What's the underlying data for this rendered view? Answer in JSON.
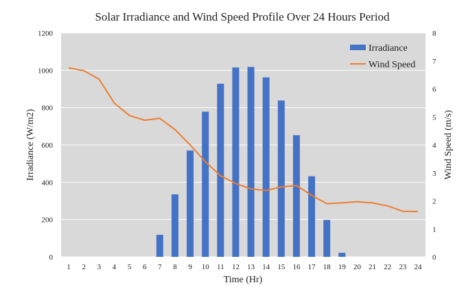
{
  "chart_data": {
    "type": "bar+line",
    "title": "Solar Irradiance and Wind Speed Profile Over 24 Hours Period",
    "xlabel": "Time (Hr)",
    "ylabel_left": "Irradiance (W/m2)",
    "ylabel_right": "Wind Speed (m/s)",
    "ylim_left": [
      0,
      1200
    ],
    "ylim_right": [
      0,
      8
    ],
    "yticks_left": [
      "0",
      "200",
      "400",
      "600",
      "800",
      "1000",
      "1200"
    ],
    "yticks_right": [
      "0",
      "1",
      "2",
      "3",
      "4",
      "5",
      "6",
      "7",
      "8"
    ],
    "categories": [
      "1",
      "2",
      "3",
      "4",
      "5",
      "6",
      "7",
      "8",
      "9",
      "10",
      "11",
      "12",
      "13",
      "14",
      "15",
      "16",
      "17",
      "18",
      "19",
      "20",
      "21",
      "22",
      "23",
      "24"
    ],
    "series": [
      {
        "name": "Irradiance",
        "type": "bar",
        "axis": "left",
        "color": "#4472C4",
        "values": [
          0,
          0,
          0,
          0,
          0,
          0,
          118,
          335,
          570,
          778,
          928,
          1015,
          1018,
          962,
          838,
          652,
          432,
          198,
          22,
          0,
          0,
          0,
          0,
          0
        ]
      },
      {
        "name": "Wind Speed",
        "type": "line",
        "axis": "right",
        "color": "#ED7D31",
        "values": [
          6.75,
          6.65,
          6.35,
          5.5,
          5.05,
          4.88,
          4.95,
          4.55,
          4.0,
          3.4,
          2.9,
          2.62,
          2.43,
          2.37,
          2.5,
          2.55,
          2.2,
          1.9,
          1.93,
          1.97,
          1.93,
          1.82,
          1.63,
          1.62
        ]
      }
    ],
    "legend": {
      "position": "top-right",
      "entries": [
        "Irradiance",
        "Wind Speed"
      ]
    },
    "grid": true,
    "plot_background": "#D9D9D9",
    "grid_color": "#FFFFFF"
  }
}
